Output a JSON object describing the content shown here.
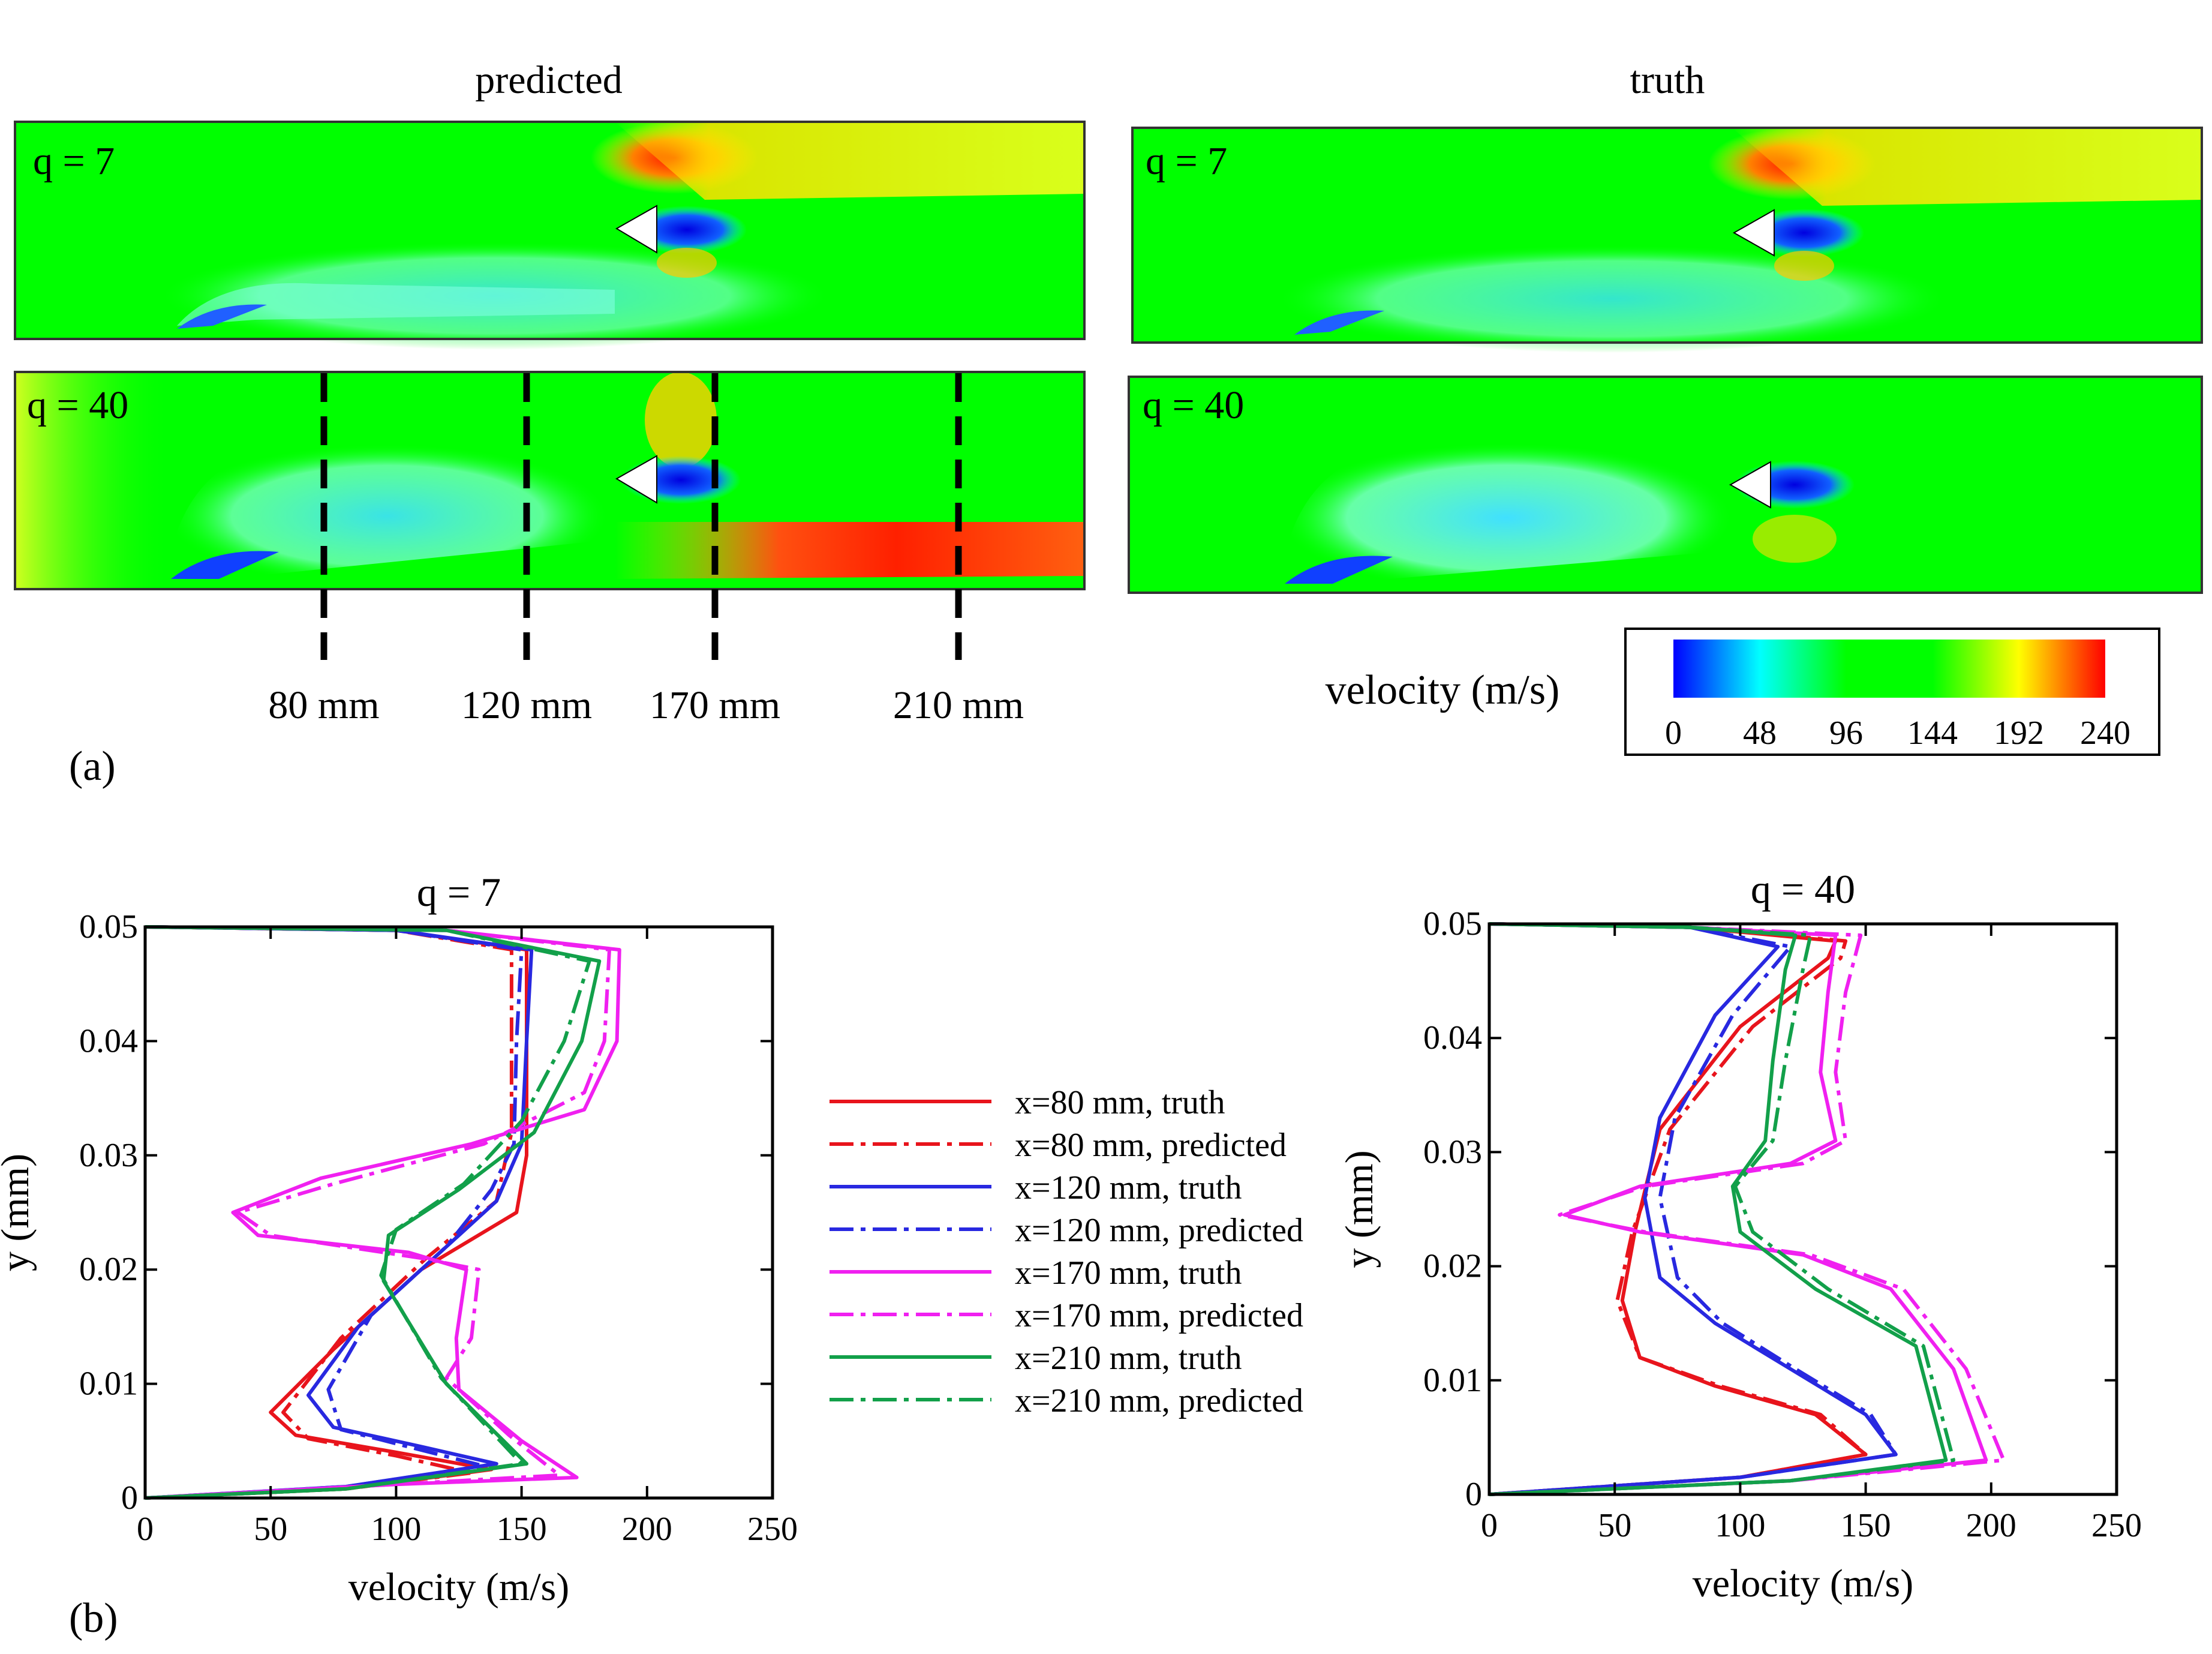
{
  "panel_a": {
    "label": "(a)",
    "col_titles": [
      "predicted",
      "truth"
    ],
    "case_labels": [
      "q = 7",
      "q = 40",
      "q = 7",
      "q = 40"
    ],
    "station_labels": [
      "80 mm",
      "120 mm",
      "170 mm",
      "210 mm"
    ],
    "colorbar": {
      "title": "velocity (m/s)",
      "ticks": [
        "0",
        "48",
        "96",
        "144",
        "192",
        "240"
      ],
      "colors": [
        "#0000ff",
        "#00ffff",
        "#00ff00",
        "#00ff00",
        "#ffff00",
        "#ff0000"
      ]
    }
  },
  "panel_b": {
    "label": "(b)",
    "legend": [
      {
        "label": "x=80 mm, truth",
        "color": "#e8141c",
        "style": "solid"
      },
      {
        "label": "x=80 mm, predicted",
        "color": "#e8141c",
        "style": "dashdot"
      },
      {
        "label": "x=120 mm, truth",
        "color": "#2828e0",
        "style": "solid"
      },
      {
        "label": "x=120 mm, predicted",
        "color": "#2828e0",
        "style": "dashdot"
      },
      {
        "label": "x=170 mm, truth",
        "color": "#f020f0",
        "style": "solid"
      },
      {
        "label": "x=170 mm, predicted",
        "color": "#f020f0",
        "style": "dashdot"
      },
      {
        "label": "x=210 mm, truth",
        "color": "#12a04a",
        "style": "solid"
      },
      {
        "label": "x=210 mm, predicted",
        "color": "#12a04a",
        "style": "dashdot"
      }
    ]
  },
  "chart_data": [
    {
      "type": "line",
      "title": "q = 7",
      "xlabel": "velocity (m/s)",
      "ylabel": "y (mm)",
      "xlim": [
        0,
        250
      ],
      "ylim": [
        0,
        0.05
      ],
      "xticks": [
        "0",
        "50",
        "100",
        "150",
        "200",
        "250"
      ],
      "yticks": [
        "0",
        "0.01",
        "0.02",
        "0.03",
        "0.04",
        "0.05"
      ],
      "series": [
        {
          "name": "x=80 mm, truth",
          "points": [
            [
              0,
              0
            ],
            [
              80,
              0.0008
            ],
            [
              138,
              0.0025
            ],
            [
              100,
              0.004
            ],
            [
              60,
              0.0055
            ],
            [
              50,
              0.0075
            ],
            [
              75,
              0.013
            ],
            [
              110,
              0.02
            ],
            [
              148,
              0.025
            ],
            [
              152,
              0.03
            ],
            [
              152,
              0.04
            ],
            [
              152,
              0.048
            ],
            [
              100,
              0.0497
            ],
            [
              0,
              0.05
            ]
          ]
        },
        {
          "name": "x=80 mm, predicted",
          "points": [
            [
              0,
              0
            ],
            [
              80,
              0.0008
            ],
            [
              130,
              0.0022
            ],
            [
              100,
              0.0037
            ],
            [
              65,
              0.0052
            ],
            [
              55,
              0.0075
            ],
            [
              78,
              0.014
            ],
            [
              112,
              0.021
            ],
            [
              140,
              0.026
            ],
            [
              146,
              0.032
            ],
            [
              146,
              0.04
            ],
            [
              146,
              0.048
            ],
            [
              100,
              0.0497
            ],
            [
              0,
              0.05
            ]
          ]
        },
        {
          "name": "x=120 mm, truth",
          "points": [
            [
              0,
              0
            ],
            [
              80,
              0.001
            ],
            [
              140,
              0.003
            ],
            [
              110,
              0.0045
            ],
            [
              75,
              0.0062
            ],
            [
              65,
              0.009
            ],
            [
              85,
              0.015
            ],
            [
              115,
              0.021
            ],
            [
              140,
              0.026
            ],
            [
              150,
              0.031
            ],
            [
              152,
              0.04
            ],
            [
              154,
              0.048
            ],
            [
              100,
              0.0497
            ],
            [
              0,
              0.05
            ]
          ]
        },
        {
          "name": "x=120 mm, predicted",
          "points": [
            [
              0,
              0
            ],
            [
              80,
              0.001
            ],
            [
              135,
              0.0028
            ],
            [
              110,
              0.0042
            ],
            [
              78,
              0.006
            ],
            [
              73,
              0.0095
            ],
            [
              90,
              0.016
            ],
            [
              120,
              0.022
            ],
            [
              138,
              0.027
            ],
            [
              147,
              0.031
            ],
            [
              148,
              0.04
            ],
            [
              150,
              0.048
            ],
            [
              100,
              0.0497
            ],
            [
              0,
              0.05
            ]
          ]
        },
        {
          "name": "x=170 mm, truth",
          "points": [
            [
              0,
              0
            ],
            [
              100,
              0.0012
            ],
            [
              172,
              0.0018
            ],
            [
              150,
              0.005
            ],
            [
              125,
              0.0095
            ],
            [
              124,
              0.014
            ],
            [
              128,
              0.02
            ],
            [
              105,
              0.0215
            ],
            [
              45,
              0.023
            ],
            [
              35,
              0.025
            ],
            [
              70,
              0.028
            ],
            [
              130,
              0.031
            ],
            [
              175,
              0.034
            ],
            [
              188,
              0.04
            ],
            [
              189,
              0.048
            ],
            [
              120,
              0.0497
            ],
            [
              0,
              0.05
            ]
          ]
        },
        {
          "name": "x=170 mm, predicted",
          "points": [
            [
              0,
              0
            ],
            [
              100,
              0.0012
            ],
            [
              165,
              0.002
            ],
            [
              145,
              0.0055
            ],
            [
              120,
              0.0105
            ],
            [
              130,
              0.014
            ],
            [
              133,
              0.02
            ],
            [
              110,
              0.021
            ],
            [
              50,
              0.023
            ],
            [
              37,
              0.025
            ],
            [
              75,
              0.0275
            ],
            [
              135,
              0.031
            ],
            [
              175,
              0.0355
            ],
            [
              183,
              0.04
            ],
            [
              185,
              0.048
            ],
            [
              120,
              0.0497
            ],
            [
              0,
              0.05
            ]
          ]
        },
        {
          "name": "x=210 mm, truth",
          "points": [
            [
              0,
              0
            ],
            [
              80,
              0.0008
            ],
            [
              152,
              0.003
            ],
            [
              120,
              0.01
            ],
            [
              95,
              0.019
            ],
            [
              97,
              0.023
            ],
            [
              125,
              0.027
            ],
            [
              155,
              0.032
            ],
            [
              174,
              0.04
            ],
            [
              181,
              0.047
            ],
            [
              120,
              0.0497
            ],
            [
              0,
              0.05
            ]
          ]
        },
        {
          "name": "x=210 mm, predicted",
          "points": [
            [
              0,
              0
            ],
            [
              80,
              0.0008
            ],
            [
              150,
              0.003
            ],
            [
              118,
              0.0105
            ],
            [
              94,
              0.0195
            ],
            [
              100,
              0.0235
            ],
            [
              127,
              0.0275
            ],
            [
              150,
              0.033
            ],
            [
              167,
              0.04
            ],
            [
              177,
              0.047
            ],
            [
              120,
              0.0497
            ],
            [
              0,
              0.05
            ]
          ]
        }
      ]
    },
    {
      "type": "line",
      "title": "q = 40",
      "xlabel": "velocity (m/s)",
      "ylabel": "y (mm)",
      "xlim": [
        0,
        250
      ],
      "ylim": [
        0,
        0.05
      ],
      "xticks": [
        "0",
        "50",
        "100",
        "150",
        "200",
        "250"
      ],
      "yticks": [
        "0",
        "0.01",
        "0.02",
        "0.03",
        "0.04",
        "0.05"
      ],
      "series": [
        {
          "name": "x=80 mm, truth",
          "points": [
            [
              0,
              0
            ],
            [
              100,
              0.0015
            ],
            [
              150,
              0.0035
            ],
            [
              130,
              0.007
            ],
            [
              90,
              0.0095
            ],
            [
              60,
              0.012
            ],
            [
              53,
              0.017
            ],
            [
              58,
              0.023
            ],
            [
              68,
              0.032
            ],
            [
              100,
              0.041
            ],
            [
              135,
              0.047
            ],
            [
              138,
              0.0485
            ],
            [
              80,
              0.0497
            ],
            [
              0,
              0.05
            ]
          ]
        },
        {
          "name": "x=80 mm, predicted",
          "points": [
            [
              0,
              0
            ],
            [
              100,
              0.0015
            ],
            [
              150,
              0.0035
            ],
            [
              132,
              0.007
            ],
            [
              92,
              0.0095
            ],
            [
              60,
              0.012
            ],
            [
              51,
              0.017
            ],
            [
              57,
              0.023
            ],
            [
              72,
              0.032
            ],
            [
              105,
              0.041
            ],
            [
              140,
              0.047
            ],
            [
              142,
              0.0485
            ],
            [
              80,
              0.0497
            ],
            [
              0,
              0.05
            ]
          ]
        },
        {
          "name": "x=120 mm, truth",
          "points": [
            [
              0,
              0
            ],
            [
              100,
              0.0015
            ],
            [
              162,
              0.0035
            ],
            [
              150,
              0.007
            ],
            [
              120,
              0.011
            ],
            [
              90,
              0.015
            ],
            [
              68,
              0.019
            ],
            [
              62,
              0.026
            ],
            [
              68,
              0.033
            ],
            [
              90,
              0.042
            ],
            [
              115,
              0.048
            ],
            [
              80,
              0.0497
            ],
            [
              0,
              0.05
            ]
          ]
        },
        {
          "name": "x=120 mm, predicted",
          "points": [
            [
              0,
              0
            ],
            [
              100,
              0.0015
            ],
            [
              162,
              0.0035
            ],
            [
              152,
              0.007
            ],
            [
              122,
              0.011
            ],
            [
              93,
              0.015
            ],
            [
              75,
              0.019
            ],
            [
              68,
              0.026
            ],
            [
              74,
              0.033
            ],
            [
              97,
              0.042
            ],
            [
              120,
              0.048
            ],
            [
              80,
              0.0497
            ],
            [
              0,
              0.05
            ]
          ]
        },
        {
          "name": "x=170 mm, truth",
          "points": [
            [
              0,
              0
            ],
            [
              120,
              0.0012
            ],
            [
              198,
              0.003
            ],
            [
              185,
              0.011
            ],
            [
              160,
              0.018
            ],
            [
              125,
              0.021
            ],
            [
              60,
              0.023
            ],
            [
              30,
              0.0245
            ],
            [
              60,
              0.027
            ],
            [
              120,
              0.029
            ],
            [
              138,
              0.031
            ],
            [
              132,
              0.037
            ],
            [
              135,
              0.044
            ],
            [
              138,
              0.049
            ],
            [
              80,
              0.0497
            ],
            [
              0,
              0.05
            ]
          ]
        },
        {
          "name": "x=170 mm, predicted",
          "points": [
            [
              0,
              0
            ],
            [
              120,
              0.0012
            ],
            [
              205,
              0.003
            ],
            [
              190,
              0.011
            ],
            [
              165,
              0.018
            ],
            [
              128,
              0.021
            ],
            [
              62,
              0.023
            ],
            [
              28,
              0.0245
            ],
            [
              62,
              0.027
            ],
            [
              125,
              0.029
            ],
            [
              142,
              0.031
            ],
            [
              138,
              0.037
            ],
            [
              142,
              0.044
            ],
            [
              148,
              0.049
            ],
            [
              80,
              0.0497
            ],
            [
              0,
              0.05
            ]
          ]
        },
        {
          "name": "x=210 mm, truth",
          "points": [
            [
              0,
              0
            ],
            [
              120,
              0.0012
            ],
            [
              182,
              0.003
            ],
            [
              170,
              0.013
            ],
            [
              130,
              0.018
            ],
            [
              100,
              0.023
            ],
            [
              97,
              0.027
            ],
            [
              110,
              0.031
            ],
            [
              113,
              0.038
            ],
            [
              118,
              0.046
            ],
            [
              122,
              0.049
            ],
            [
              80,
              0.0497
            ],
            [
              0,
              0.05
            ]
          ]
        },
        {
          "name": "x=210 mm, predicted",
          "points": [
            [
              0,
              0
            ],
            [
              120,
              0.0012
            ],
            [
              185,
              0.003
            ],
            [
              173,
              0.013
            ],
            [
              135,
              0.018
            ],
            [
              105,
              0.023
            ],
            [
              98,
              0.027
            ],
            [
              113,
              0.031
            ],
            [
              118,
              0.038
            ],
            [
              125,
              0.046
            ],
            [
              128,
              0.049
            ],
            [
              80,
              0.0497
            ],
            [
              0,
              0.05
            ]
          ]
        }
      ]
    }
  ]
}
